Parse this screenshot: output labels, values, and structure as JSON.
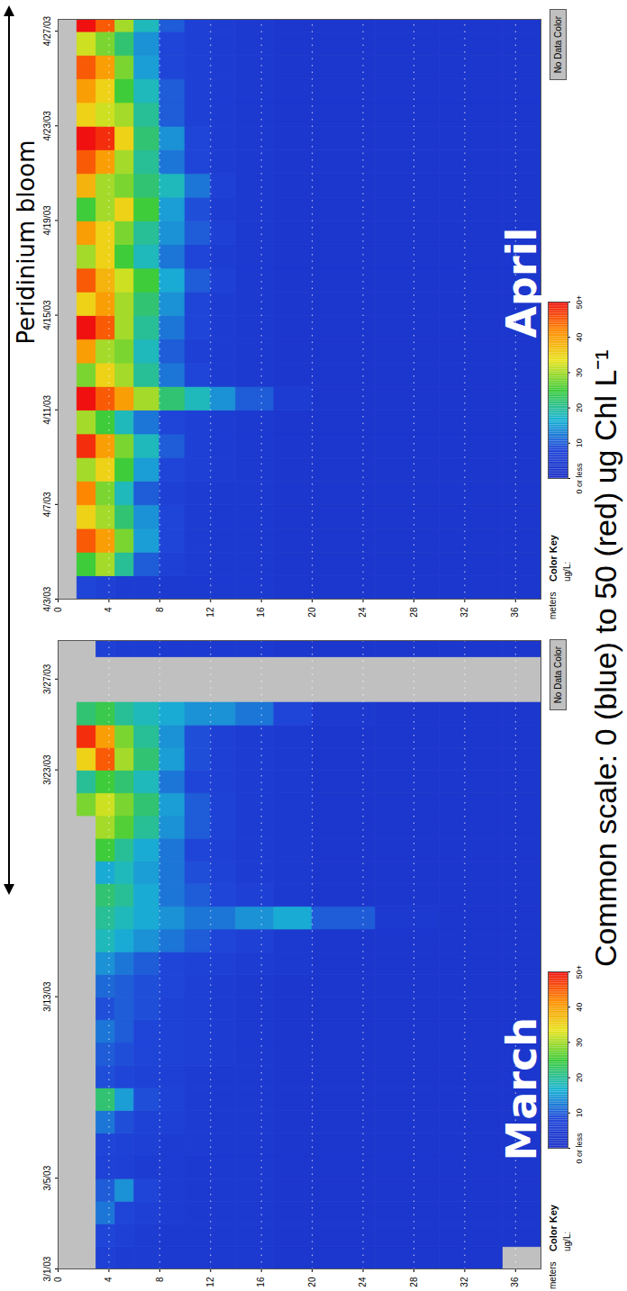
{
  "annotation": "Peridinium bloom",
  "caption": "Common scale: 0 (blue) to 50 (red) ug Chl L⁻¹",
  "chart_data": [
    {
      "type": "heatmap",
      "title": "March",
      "ylabel": "meters",
      "x_bins": [
        1,
        2,
        3,
        4,
        5,
        6,
        7,
        8,
        9,
        10,
        11,
        12,
        13,
        14,
        15,
        16,
        17,
        18,
        19,
        20,
        21,
        22,
        23,
        24,
        25,
        26,
        27,
        28,
        28.7
      ],
      "y_bins": [
        0,
        1.5,
        3,
        4.5,
        6,
        8,
        10,
        12,
        14,
        17,
        20,
        25,
        30,
        35,
        38
      ],
      "values": [
        [
          null,
          null,
          6,
          5,
          5,
          4,
          4,
          4,
          4,
          3,
          3,
          3,
          3,
          null
        ],
        [
          null,
          null,
          8,
          6,
          5,
          4,
          4,
          4,
          4,
          3,
          3,
          3,
          3,
          3
        ],
        [
          null,
          null,
          12,
          8,
          6,
          5,
          4,
          4,
          4,
          3,
          3,
          3,
          3,
          3
        ],
        [
          null,
          null,
          10,
          14,
          8,
          5,
          4,
          4,
          4,
          3,
          3,
          3,
          3,
          3
        ],
        [
          null,
          null,
          7,
          6,
          5,
          5,
          4,
          4,
          4,
          3,
          3,
          3,
          3,
          3
        ],
        [
          null,
          null,
          8,
          7,
          6,
          5,
          5,
          4,
          4,
          3,
          3,
          3,
          3,
          3
        ],
        [
          null,
          null,
          12,
          9,
          7,
          6,
          5,
          4,
          4,
          3,
          3,
          3,
          3,
          3
        ],
        [
          null,
          null,
          22,
          15,
          9,
          7,
          5,
          4,
          4,
          3,
          3,
          3,
          3,
          3
        ],
        [
          null,
          null,
          9,
          8,
          7,
          6,
          5,
          4,
          4,
          3,
          3,
          3,
          3,
          3
        ],
        [
          null,
          null,
          10,
          9,
          8,
          7,
          6,
          5,
          4,
          3,
          3,
          3,
          3,
          3
        ],
        [
          null,
          null,
          12,
          10,
          8,
          7,
          6,
          5,
          4,
          3,
          3,
          3,
          3,
          3
        ],
        [
          null,
          null,
          9,
          10,
          9,
          7,
          6,
          5,
          4,
          3,
          3,
          3,
          3,
          3
        ],
        [
          null,
          null,
          11,
          10,
          9,
          8,
          6,
          5,
          4,
          3,
          3,
          3,
          3,
          3
        ],
        [
          null,
          null,
          14,
          12,
          10,
          8,
          7,
          6,
          5,
          4,
          3,
          3,
          3,
          3
        ],
        [
          null,
          null,
          18,
          16,
          14,
          12,
          10,
          8,
          6,
          4,
          3,
          3,
          3,
          3
        ],
        [
          null,
          null,
          20,
          18,
          16,
          14,
          12,
          12,
          14,
          16,
          10,
          4,
          3,
          3
        ],
        [
          null,
          null,
          22,
          20,
          16,
          12,
          10,
          8,
          6,
          4,
          3,
          3,
          3,
          3
        ],
        [
          null,
          null,
          16,
          18,
          15,
          12,
          9,
          7,
          5,
          4,
          3,
          3,
          3,
          3
        ],
        [
          null,
          null,
          25,
          20,
          16,
          12,
          8,
          6,
          5,
          4,
          3,
          3,
          3,
          3
        ],
        [
          null,
          null,
          30,
          26,
          20,
          14,
          10,
          7,
          5,
          4,
          3,
          3,
          3,
          3
        ],
        [
          null,
          28,
          32,
          28,
          22,
          15,
          10,
          7,
          5,
          4,
          3,
          3,
          3,
          3
        ],
        [
          null,
          20,
          25,
          22,
          18,
          12,
          8,
          6,
          5,
          4,
          3,
          3,
          3,
          3
        ],
        [
          null,
          35,
          45,
          30,
          22,
          15,
          9,
          6,
          5,
          4,
          3,
          3,
          3,
          3
        ],
        [
          null,
          48,
          40,
          28,
          20,
          14,
          9,
          6,
          5,
          4,
          3,
          3,
          3,
          3
        ],
        [
          null,
          22,
          24,
          20,
          18,
          16,
          14,
          14,
          12,
          8,
          4,
          3,
          3,
          3
        ],
        [
          null,
          null,
          null,
          null,
          null,
          null,
          null,
          null,
          null,
          null,
          null,
          null,
          null,
          null
        ],
        [
          null,
          null,
          null,
          null,
          null,
          null,
          null,
          null,
          null,
          null,
          null,
          null,
          null,
          null
        ],
        [
          null,
          null,
          6,
          5,
          5,
          4,
          4,
          4,
          4,
          3,
          3,
          3,
          3,
          3
        ]
      ],
      "xlim": [
        1,
        28.7
      ],
      "xticks": [
        {
          "value": 1,
          "label": "3/1/03"
        },
        {
          "value": 5,
          "label": "3/5/03"
        },
        {
          "value": 13,
          "label": "3/13/03"
        },
        {
          "value": 23,
          "label": "3/23/03"
        },
        {
          "value": 27,
          "label": "3/27/03"
        }
      ],
      "ylim": [
        0,
        38
      ],
      "yticks": [
        0,
        4,
        8,
        12,
        16,
        20,
        24,
        28,
        32,
        36
      ],
      "grid": true,
      "colorbar": {
        "title": "Color Key",
        "unit": "ug/L:",
        "range": [
          0,
          50
        ],
        "ticks": [
          {
            "value": 0,
            "label": "0 or less"
          },
          10,
          20,
          30,
          40,
          {
            "value": 50,
            "label": "50+"
          }
        ],
        "colors": [
          "#1a2fc7",
          "#1f46d9",
          "#19b4d4",
          "#3ecc3a",
          "#e8e41e",
          "#ff8c00",
          "#f01010"
        ]
      },
      "no_data": {
        "label": "No Data Color",
        "color": "#c0c0c0"
      }
    },
    {
      "type": "heatmap",
      "title": "April",
      "ylabel": "meters",
      "x_bins": [
        3,
        4,
        5,
        6,
        7,
        8,
        9,
        10,
        11,
        12,
        13,
        14,
        15,
        16,
        17,
        18,
        19,
        20,
        21,
        22,
        23,
        24,
        25,
        26,
        27,
        27.5
      ],
      "y_bins": [
        0,
        1.5,
        3,
        4.5,
        6,
        8,
        10,
        12,
        14,
        17,
        20,
        25,
        30,
        35,
        38
      ],
      "values": [
        [
          null,
          8,
          6,
          5,
          5,
          4,
          4,
          4,
          4,
          3,
          3,
          3,
          3,
          3
        ],
        [
          null,
          25,
          30,
          20,
          10,
          6,
          5,
          4,
          4,
          3,
          3,
          3,
          3,
          3
        ],
        [
          null,
          45,
          40,
          28,
          15,
          8,
          5,
          4,
          4,
          3,
          3,
          3,
          3,
          3
        ],
        [
          null,
          35,
          30,
          22,
          14,
          8,
          5,
          4,
          4,
          3,
          3,
          3,
          3,
          3
        ],
        [
          null,
          42,
          28,
          18,
          10,
          6,
          5,
          4,
          4,
          3,
          3,
          3,
          3,
          3
        ],
        [
          null,
          30,
          35,
          25,
          15,
          8,
          6,
          5,
          4,
          3,
          3,
          3,
          3,
          3
        ],
        [
          null,
          48,
          40,
          28,
          18,
          10,
          6,
          5,
          4,
          3,
          3,
          3,
          3,
          3
        ],
        [
          null,
          30,
          25,
          18,
          12,
          8,
          6,
          5,
          4,
          3,
          3,
          3,
          3,
          3
        ],
        [
          null,
          50,
          45,
          40,
          30,
          22,
          18,
          14,
          10,
          5,
          3,
          3,
          3,
          3
        ],
        [
          null,
          28,
          35,
          30,
          20,
          12,
          8,
          5,
          4,
          3,
          3,
          3,
          3,
          3
        ],
        [
          null,
          40,
          30,
          28,
          18,
          10,
          6,
          5,
          4,
          3,
          3,
          3,
          3,
          3
        ],
        [
          null,
          50,
          45,
          30,
          20,
          12,
          8,
          5,
          4,
          3,
          3,
          3,
          3,
          3
        ],
        [
          null,
          35,
          40,
          30,
          22,
          14,
          8,
          5,
          4,
          3,
          3,
          3,
          3,
          3
        ],
        [
          null,
          45,
          38,
          32,
          25,
          16,
          10,
          6,
          4,
          3,
          3,
          3,
          3,
          3
        ],
        [
          null,
          30,
          35,
          25,
          18,
          12,
          8,
          5,
          4,
          3,
          3,
          3,
          3,
          3
        ],
        [
          null,
          40,
          35,
          28,
          20,
          14,
          10,
          6,
          4,
          3,
          3,
          3,
          3,
          3
        ],
        [
          null,
          25,
          30,
          35,
          25,
          15,
          9,
          5,
          4,
          3,
          3,
          3,
          3,
          3
        ],
        [
          null,
          38,
          30,
          28,
          22,
          18,
          12,
          6,
          4,
          3,
          3,
          3,
          3,
          3
        ],
        [
          null,
          45,
          40,
          30,
          20,
          12,
          8,
          5,
          4,
          3,
          3,
          3,
          3,
          3
        ],
        [
          null,
          50,
          48,
          35,
          22,
          14,
          8,
          5,
          4,
          3,
          3,
          3,
          3,
          3
        ],
        [
          null,
          35,
          32,
          30,
          20,
          10,
          6,
          5,
          4,
          3,
          3,
          3,
          3,
          3
        ],
        [
          null,
          40,
          35,
          25,
          18,
          10,
          6,
          5,
          4,
          3,
          3,
          3,
          3,
          3
        ],
        [
          null,
          45,
          40,
          28,
          15,
          8,
          6,
          5,
          4,
          3,
          3,
          3,
          3,
          3
        ],
        [
          null,
          32,
          28,
          22,
          14,
          8,
          6,
          5,
          4,
          3,
          3,
          3,
          3,
          3
        ],
        [
          null,
          50,
          45,
          30,
          18,
          10,
          6,
          5,
          4,
          3,
          3,
          3,
          3,
          3
        ]
      ],
      "xlim": [
        3,
        27.5
      ],
      "xticks": [
        {
          "value": 3,
          "label": "4/3/03"
        },
        {
          "value": 7,
          "label": "4/7/03"
        },
        {
          "value": 11,
          "label": "4/11/03"
        },
        {
          "value": 15,
          "label": "4/15/03"
        },
        {
          "value": 19,
          "label": "4/19/03"
        },
        {
          "value": 23,
          "label": "4/23/03"
        },
        {
          "value": 27,
          "label": "4/27/03"
        }
      ],
      "ylim": [
        0,
        38
      ],
      "yticks": [
        0,
        4,
        8,
        12,
        16,
        20,
        24,
        28,
        32,
        36
      ],
      "grid": true,
      "colorbar": {
        "title": "Color Key",
        "unit": "ug/L:",
        "range": [
          0,
          50
        ],
        "ticks": [
          {
            "value": 0,
            "label": "0 or less"
          },
          10,
          20,
          30,
          40,
          {
            "value": 50,
            "label": "50+"
          }
        ],
        "colors": [
          "#1a2fc7",
          "#1f46d9",
          "#19b4d4",
          "#3ecc3a",
          "#e8e41e",
          "#ff8c00",
          "#f01010"
        ]
      },
      "no_data": {
        "label": "No Data Color",
        "color": "#c0c0c0"
      }
    }
  ]
}
